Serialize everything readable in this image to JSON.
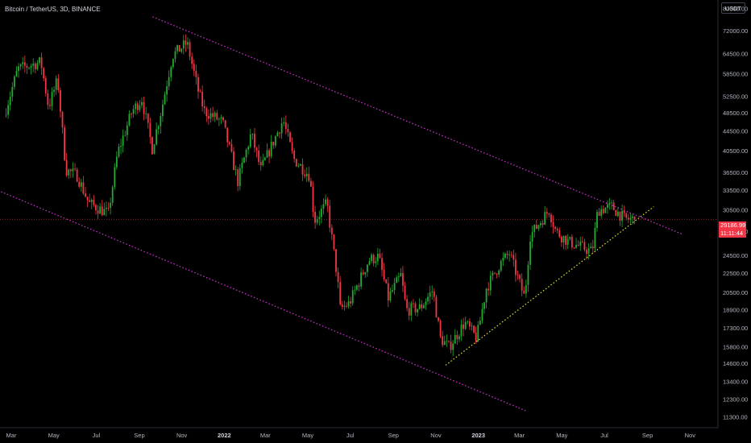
{
  "header": {
    "symbol_title": "Bitcoin / TetherUS, 3D, BINANCE",
    "currency_label": "USDT"
  },
  "price_badge": {
    "last_price": "29186.99",
    "countdown": "11:11:44",
    "color": "#f23645"
  },
  "colors": {
    "background": "#000000",
    "up_candle": "#22ab32",
    "down_candle": "#f23645",
    "channel_line": "#d633d6",
    "support_line": "#e6e62e"
  },
  "chart_data": {
    "type": "candlestick",
    "title": "Bitcoin / TetherUS, 3D, BINANCE",
    "y_scale": "log",
    "ylim": [
      10600,
      81000
    ],
    "y_ticks": [
      "80000.00",
      "72000.00",
      "64500.00",
      "58500.00",
      "52500.00",
      "48500.00",
      "44500.00",
      "40500.00",
      "36500.00",
      "33500.00",
      "30500.00",
      "27500.00",
      "24500.00",
      "22500.00",
      "20500.00",
      "18900.00",
      "17300.00",
      "15800.00",
      "14600.00",
      "13400.00",
      "12300.00",
      "11300.00"
    ],
    "x_ticks": [
      {
        "label": "Mar",
        "date": "2021-03-01"
      },
      {
        "label": "May",
        "date": "2021-05-01"
      },
      {
        "label": "Jul",
        "date": "2021-07-01"
      },
      {
        "label": "Sep",
        "date": "2021-09-01"
      },
      {
        "label": "Nov",
        "date": "2021-11-01"
      },
      {
        "label": "2022",
        "date": "2022-01-01"
      },
      {
        "label": "Mar",
        "date": "2022-03-01"
      },
      {
        "label": "May",
        "date": "2022-05-01"
      },
      {
        "label": "Jul",
        "date": "2022-07-01"
      },
      {
        "label": "Sep",
        "date": "2022-09-01"
      },
      {
        "label": "Nov",
        "date": "2022-11-01"
      },
      {
        "label": "2023",
        "date": "2023-01-01"
      },
      {
        "label": "Mar",
        "date": "2023-03-01"
      },
      {
        "label": "May",
        "date": "2023-05-01"
      },
      {
        "label": "Jul",
        "date": "2023-07-01"
      },
      {
        "label": "Sep",
        "date": "2023-09-01"
      },
      {
        "label": "Nov",
        "date": "2023-11-01"
      }
    ],
    "price_path": [
      [
        "2021-02-20",
        48000
      ],
      [
        "2021-03-12",
        60000
      ],
      [
        "2021-04-14",
        62000
      ],
      [
        "2021-04-25",
        50000
      ],
      [
        "2021-05-08",
        57000
      ],
      [
        "2021-05-20",
        37000
      ],
      [
        "2021-06-05",
        36000
      ],
      [
        "2021-06-22",
        31500
      ],
      [
        "2021-07-20",
        30000
      ],
      [
        "2021-08-02",
        40000
      ],
      [
        "2021-08-23",
        49000
      ],
      [
        "2021-09-06",
        52000
      ],
      [
        "2021-09-21",
        41000
      ],
      [
        "2021-10-05",
        50000
      ],
      [
        "2021-10-20",
        64000
      ],
      [
        "2021-11-10",
        68000
      ],
      [
        "2021-11-26",
        54000
      ],
      [
        "2021-12-05",
        49000
      ],
      [
        "2021-12-31",
        46500
      ],
      [
        "2022-01-22",
        35000
      ],
      [
        "2022-02-10",
        44000
      ],
      [
        "2022-02-24",
        37000
      ],
      [
        "2022-03-28",
        47000
      ],
      [
        "2022-04-12",
        39000
      ],
      [
        "2022-05-05",
        36000
      ],
      [
        "2022-05-12",
        29000
      ],
      [
        "2022-05-30",
        31500
      ],
      [
        "2022-06-14",
        22000
      ],
      [
        "2022-06-18",
        19000
      ],
      [
        "2022-07-01",
        19500
      ],
      [
        "2022-07-29",
        24000
      ],
      [
        "2022-08-12",
        24400
      ],
      [
        "2022-08-26",
        20000
      ],
      [
        "2022-09-13",
        22300
      ],
      [
        "2022-09-21",
        18900
      ],
      [
        "2022-10-11",
        19100
      ],
      [
        "2022-10-29",
        20800
      ],
      [
        "2022-11-09",
        16500
      ],
      [
        "2022-11-21",
        15800
      ],
      [
        "2022-12-14",
        17800
      ],
      [
        "2022-12-31",
        16500
      ],
      [
        "2023-01-14",
        21000
      ],
      [
        "2023-02-02",
        23500
      ],
      [
        "2023-02-16",
        24800
      ],
      [
        "2023-03-10",
        20000
      ],
      [
        "2023-03-18",
        27000
      ],
      [
        "2023-04-14",
        30500
      ],
      [
        "2023-04-24",
        27500
      ],
      [
        "2023-05-12",
        26200
      ],
      [
        "2023-06-15",
        25000
      ],
      [
        "2023-06-23",
        30500
      ],
      [
        "2023-07-13",
        31000
      ],
      [
        "2023-08-01",
        29200
      ],
      [
        "2023-08-12",
        29186.99
      ]
    ],
    "channel_upper": [
      [
        "2021-09-20",
        77000
      ],
      [
        "2023-10-20",
        27200
      ]
    ],
    "channel_lower": [
      [
        "2021-02-10",
        33500
      ],
      [
        "2023-03-10",
        11650
      ]
    ],
    "support_line": [
      [
        "2022-11-15",
        14500
      ],
      [
        "2023-09-10",
        31000
      ]
    ],
    "last_price": 29186.99
  }
}
